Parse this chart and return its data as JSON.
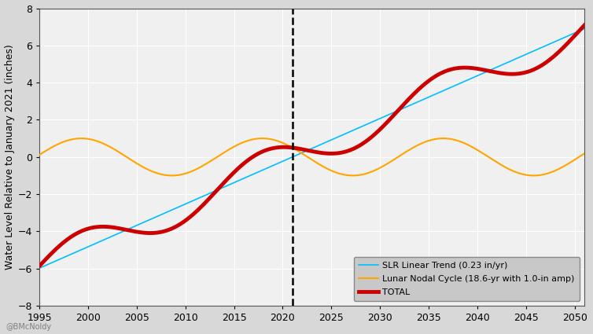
{
  "title": "",
  "xlabel": "",
  "ylabel": "Water Level Relative to January 2021 (inches)",
  "xlim": [
    1995,
    2051
  ],
  "ylim": [
    -8,
    8
  ],
  "xticks": [
    1995,
    2000,
    2005,
    2010,
    2015,
    2020,
    2025,
    2030,
    2035,
    2040,
    2045,
    2050
  ],
  "yticks": [
    -8,
    -6,
    -4,
    -2,
    0,
    2,
    4,
    6,
    8
  ],
  "slr_rate": 0.23,
  "ref_year": 2021,
  "nodal_period": 18.6,
  "nodal_amplitude": 1.0,
  "peak_year": 1999.3,
  "year_start": 1995,
  "year_end": 2051,
  "vline_year": 2021,
  "slr_color": "#00BFFF",
  "nodal_color": "#FFA500",
  "total_color": "#CC0000",
  "total_linewidth": 3.5,
  "slr_linewidth": 1.2,
  "nodal_linewidth": 1.5,
  "plot_bg_color": "#F0F0F0",
  "outer_bg_color": "#D8D8D8",
  "grid_color": "#FFFFFF",
  "legend_facecolor": "#C8C8C8",
  "legend_labels": [
    "SLR Linear Trend (0.23 in/yr)",
    "Lunar Nodal Cycle (18.6-yr with 1.0-in amp)",
    "TOTAL"
  ],
  "watermark": "@BMcNoldy",
  "watermark_fontsize": 7,
  "tick_fontsize": 9,
  "ylabel_fontsize": 9
}
